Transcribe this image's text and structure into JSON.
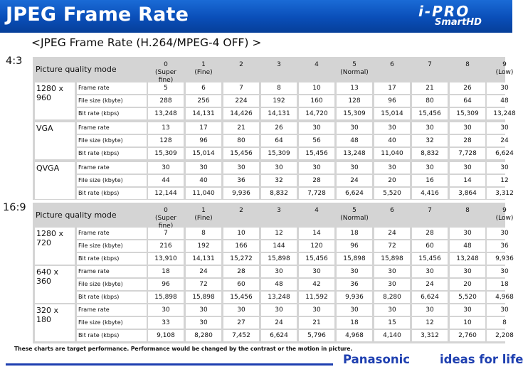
{
  "header": {
    "title": "JPEG Frame Rate",
    "logo_top": "i-PRO",
    "logo_bottom": "SmartHD",
    "background": "#0a4eb8"
  },
  "subtitle": "<JPEG Frame Rate (H.264/MPEG-4 OFF) >",
  "aspect_43": "4:3",
  "aspect_169": "16:9",
  "picture_quality_label": "Picture quality mode",
  "quality_headers": [
    {
      "num": "0",
      "sub": "(Super fine)"
    },
    {
      "num": "1",
      "sub": "(Fine)"
    },
    {
      "num": "2",
      "sub": ""
    },
    {
      "num": "3",
      "sub": ""
    },
    {
      "num": "4",
      "sub": ""
    },
    {
      "num": "5",
      "sub": "(Normal)"
    },
    {
      "num": "6",
      "sub": ""
    },
    {
      "num": "7",
      "sub": ""
    },
    {
      "num": "8",
      "sub": ""
    },
    {
      "num": "9",
      "sub": "(Low)"
    }
  ],
  "sections": [
    {
      "resolutions": [
        {
          "name": "1280 x 960",
          "rows": [
            {
              "label": "Frame rate",
              "values": [
                "5",
                "6",
                "7",
                "8",
                "10",
                "13",
                "17",
                "21",
                "26",
                "30"
              ]
            },
            {
              "label": "File size (kbyte)",
              "values": [
                "288",
                "256",
                "224",
                "192",
                "160",
                "128",
                "96",
                "80",
                "64",
                "48"
              ]
            },
            {
              "label": "Bit rate (kbps)",
              "values": [
                "13,248",
                "14,131",
                "14,426",
                "14,131",
                "14,720",
                "15,309",
                "15,014",
                "15,456",
                "15,309",
                "13,248"
              ]
            }
          ]
        },
        {
          "name": "VGA",
          "rows": [
            {
              "label": "Frame rate",
              "values": [
                "13",
                "17",
                "21",
                "26",
                "30",
                "30",
                "30",
                "30",
                "30",
                "30"
              ]
            },
            {
              "label": "File size (kbyte)",
              "values": [
                "128",
                "96",
                "80",
                "64",
                "56",
                "48",
                "40",
                "32",
                "28",
                "24"
              ]
            },
            {
              "label": "Bit rate (kbps)",
              "values": [
                "15,309",
                "15,014",
                "15,456",
                "15,309",
                "15,456",
                "13,248",
                "11,040",
                "8,832",
                "7,728",
                "6,624"
              ]
            }
          ]
        },
        {
          "name": "QVGA",
          "rows": [
            {
              "label": "Frame rate",
              "values": [
                "30",
                "30",
                "30",
                "30",
                "30",
                "30",
                "30",
                "30",
                "30",
                "30"
              ]
            },
            {
              "label": "File size (kbyte)",
              "values": [
                "44",
                "40",
                "36",
                "32",
                "28",
                "24",
                "20",
                "16",
                "14",
                "12"
              ]
            },
            {
              "label": "Bit rate (kbps)",
              "values": [
                "12,144",
                "11,040",
                "9,936",
                "8,832",
                "7,728",
                "6,624",
                "5,520",
                "4,416",
                "3,864",
                "3,312"
              ]
            }
          ]
        }
      ]
    },
    {
      "resolutions": [
        {
          "name": "1280 x 720",
          "rows": [
            {
              "label": "Frame rate",
              "values": [
                "7",
                "8",
                "10",
                "12",
                "14",
                "18",
                "24",
                "28",
                "30",
                "30"
              ]
            },
            {
              "label": "File size (kbyte)",
              "values": [
                "216",
                "192",
                "166",
                "144",
                "120",
                "96",
                "72",
                "60",
                "48",
                "36"
              ]
            },
            {
              "label": "Bit rate (kbps)",
              "values": [
                "13,910",
                "14,131",
                "15,272",
                "15,898",
                "15,456",
                "15,898",
                "15,898",
                "15,456",
                "13,248",
                "9,936"
              ]
            }
          ]
        },
        {
          "name": "640 x 360",
          "rows": [
            {
              "label": "Frame rate",
              "values": [
                "18",
                "24",
                "28",
                "30",
                "30",
                "30",
                "30",
                "30",
                "30",
                "30"
              ]
            },
            {
              "label": "File size (kbyte)",
              "values": [
                "96",
                "72",
                "60",
                "48",
                "42",
                "36",
                "30",
                "24",
                "20",
                "18"
              ]
            },
            {
              "label": "Bit rate (kbps)",
              "values": [
                "15,898",
                "15,898",
                "15,456",
                "13,248",
                "11,592",
                "9,936",
                "8,280",
                "6,624",
                "5,520",
                "4,968"
              ]
            }
          ]
        },
        {
          "name": "320 x 180",
          "rows": [
            {
              "label": "Frame rate",
              "values": [
                "30",
                "30",
                "30",
                "30",
                "30",
                "30",
                "30",
                "30",
                "30",
                "30"
              ]
            },
            {
              "label": "File size (kbyte)",
              "values": [
                "33",
                "30",
                "27",
                "24",
                "21",
                "18",
                "15",
                "12",
                "10",
                "8"
              ]
            },
            {
              "label": "Bit rate (kbps)",
              "values": [
                "9,108",
                "8,280",
                "7,452",
                "6,624",
                "5,796",
                "4,968",
                "4,140",
                "3,312",
                "2,760",
                "2,208"
              ]
            }
          ]
        }
      ]
    }
  ],
  "footnote": "These charts are target performance. Performance would be changed by the contrast or the motion in picture.",
  "footer": {
    "brand": "Panasonic",
    "slogan": "ideas for life",
    "accent": "#1e3fb0"
  }
}
